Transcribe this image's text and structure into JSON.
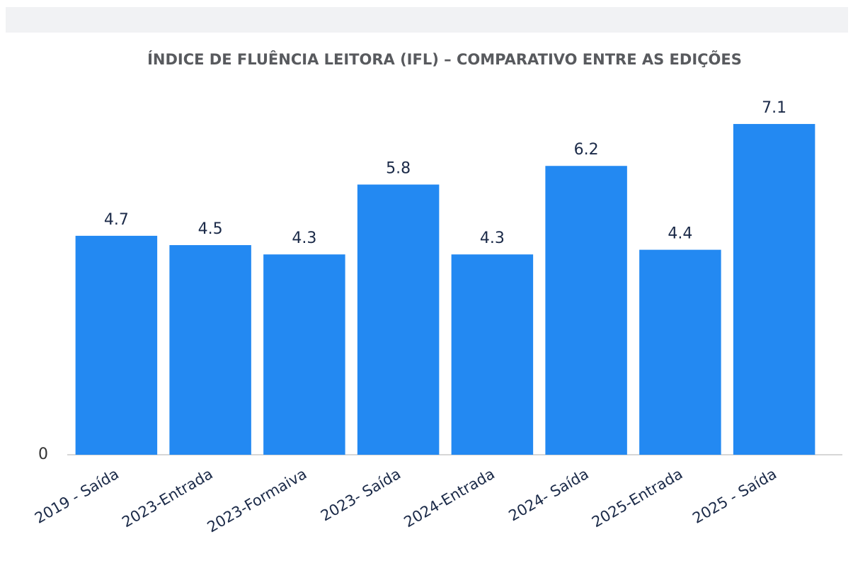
{
  "chart_data": {
    "type": "bar",
    "title": "ÍNDICE DE FLUÊNCIA LEITORA (IFL) – COMPARATIVO ENTRE AS EDIÇÕES",
    "categories": [
      "2019 - Saída",
      "2023-Entrada",
      "2023-Formaiva",
      "2023- Saída",
      "2024-Entrada",
      "2024- Saída",
      "2025-Entrada",
      "2025 - Saída"
    ],
    "values": [
      4.7,
      4.5,
      4.3,
      5.8,
      4.3,
      6.2,
      4.4,
      7.1
    ],
    "color": "#2389f2",
    "ylim": [
      0,
      7.8
    ],
    "yticks": [
      0
    ]
  }
}
